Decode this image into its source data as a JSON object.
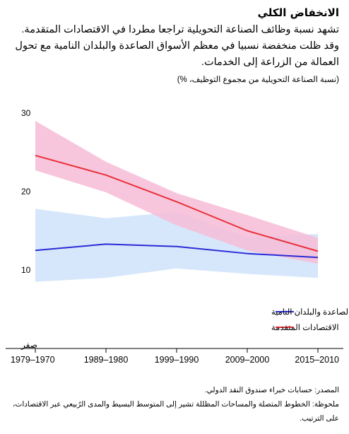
{
  "header": {
    "title": "الانخفاض الكلي",
    "subtitle": "تشهد نسبة وظائف الصناعة التحويلية تراجعا مطردا في الاقتصادات المتقدمة. وقد ظلت منخفضة نسبيا في معظم الأسواق الصاعدة والبلدان النامية مع تحول العمالة من الزراعة إلى الخدمات.",
    "units": "(نسبة الصناعة التحويلية من مجموع التوظيف، %)"
  },
  "footer": {
    "source": "المصدر: حسابات خبراء صندوق النقد الدولي.",
    "note": "ملحوظة: الخطوط المتصلة والمساحات المظللة تشير إلى المتوسط البسيط والمدى الرُبيعي عبر الاقتصادات، على الترتيب."
  },
  "chart_data": {
    "type": "line",
    "categories": [
      "1979–1970",
      "1989–1980",
      "1999–1990",
      "2009–2000",
      "2015–2010"
    ],
    "y_ticks": [
      {
        "value": 0,
        "label": "صفر"
      },
      {
        "value": 10,
        "label": "10"
      },
      {
        "value": 20,
        "label": "20"
      },
      {
        "value": 30,
        "label": "30"
      }
    ],
    "ylim": [
      0,
      30
    ],
    "grid": false,
    "legend_position": "bottom-right",
    "series": [
      {
        "name": "الأسواق الصاعدة والبلدان النامية",
        "color": "#2b2bd6",
        "band_color": "#cfe3fa",
        "values": [
          12.5,
          13.3,
          13.0,
          12.1,
          11.6
        ],
        "lower": [
          8.5,
          9.0,
          10.2,
          9.5,
          9.0
        ],
        "upper": [
          17.8,
          16.6,
          17.4,
          14.2,
          14.6
        ]
      },
      {
        "name": "الاقتصادات المتقدمة",
        "color": "#e8303a",
        "band_color": "#f7bcd6",
        "values": [
          24.6,
          22.1,
          18.7,
          15.0,
          12.4
        ],
        "lower": [
          22.7,
          19.9,
          15.7,
          12.5,
          10.8
        ],
        "upper": [
          29.0,
          23.8,
          19.8,
          17.0,
          14.1
        ]
      }
    ]
  }
}
